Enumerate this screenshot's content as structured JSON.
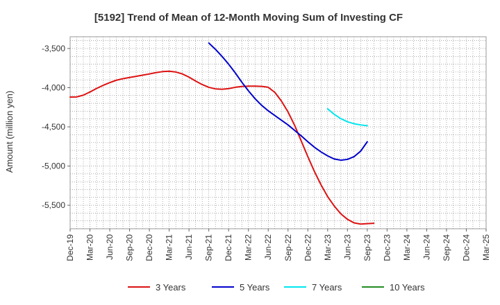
{
  "chart_data": {
    "type": "line",
    "title": "[5192]  Trend of Mean of 12-Month Moving Sum of Investing CF",
    "xlabel": "",
    "ylabel": "Amount (million yen)",
    "ylim": [
      -5800,
      -3350
    ],
    "yticks": [
      -3500,
      -4000,
      -4500,
      -5000,
      -5500
    ],
    "ytick_labels": [
      "-3,500",
      "-4,000",
      "-4,500",
      "-5,000",
      "-5,500"
    ],
    "x_categories": [
      "Dec-19",
      "Mar-20",
      "Jun-20",
      "Sep-20",
      "Dec-20",
      "Mar-21",
      "Jun-21",
      "Sep-21",
      "Dec-21",
      "Mar-22",
      "Jun-22",
      "Sep-22",
      "Dec-22",
      "Mar-23",
      "Jun-23",
      "Sep-23",
      "Dec-23",
      "Mar-24",
      "Jun-24",
      "Sep-24",
      "Dec-24",
      "Mar-25"
    ],
    "grid": true,
    "legend_position": "bottom",
    "series": [
      {
        "name": "3 Years",
        "color": "#dd1111",
        "start_index": 0,
        "values": [
          -4120,
          -4118,
          -4095,
          -4055,
          -4010,
          -3970,
          -3935,
          -3905,
          -3885,
          -3870,
          -3855,
          -3840,
          -3825,
          -3808,
          -3795,
          -3790,
          -3800,
          -3825,
          -3865,
          -3915,
          -3960,
          -3995,
          -4015,
          -4020,
          -4012,
          -3995,
          -3985,
          -3980,
          -3980,
          -3983,
          -3995,
          -4060,
          -4170,
          -4310,
          -4480,
          -4680,
          -4880,
          -5070,
          -5240,
          -5390,
          -5510,
          -5610,
          -5680,
          -5725,
          -5740,
          -5735,
          -5730
        ]
      },
      {
        "name": "5 Years",
        "color": "#0000cc",
        "start_index": 21,
        "values": [
          -3430,
          -3510,
          -3600,
          -3700,
          -3810,
          -3930,
          -4040,
          -4140,
          -4225,
          -4295,
          -4355,
          -4415,
          -4475,
          -4545,
          -4615,
          -4690,
          -4760,
          -4820,
          -4870,
          -4910,
          -4925,
          -4915,
          -4880,
          -4810,
          -4690
        ]
      },
      {
        "name": "7 Years",
        "color": "#00e5ee",
        "start_index": 39,
        "values": [
          -4270,
          -4340,
          -4395,
          -4435,
          -4460,
          -4475,
          -4485
        ]
      },
      {
        "name": "10 Years",
        "color": "#228b22",
        "start_index": 0,
        "values": []
      }
    ]
  }
}
